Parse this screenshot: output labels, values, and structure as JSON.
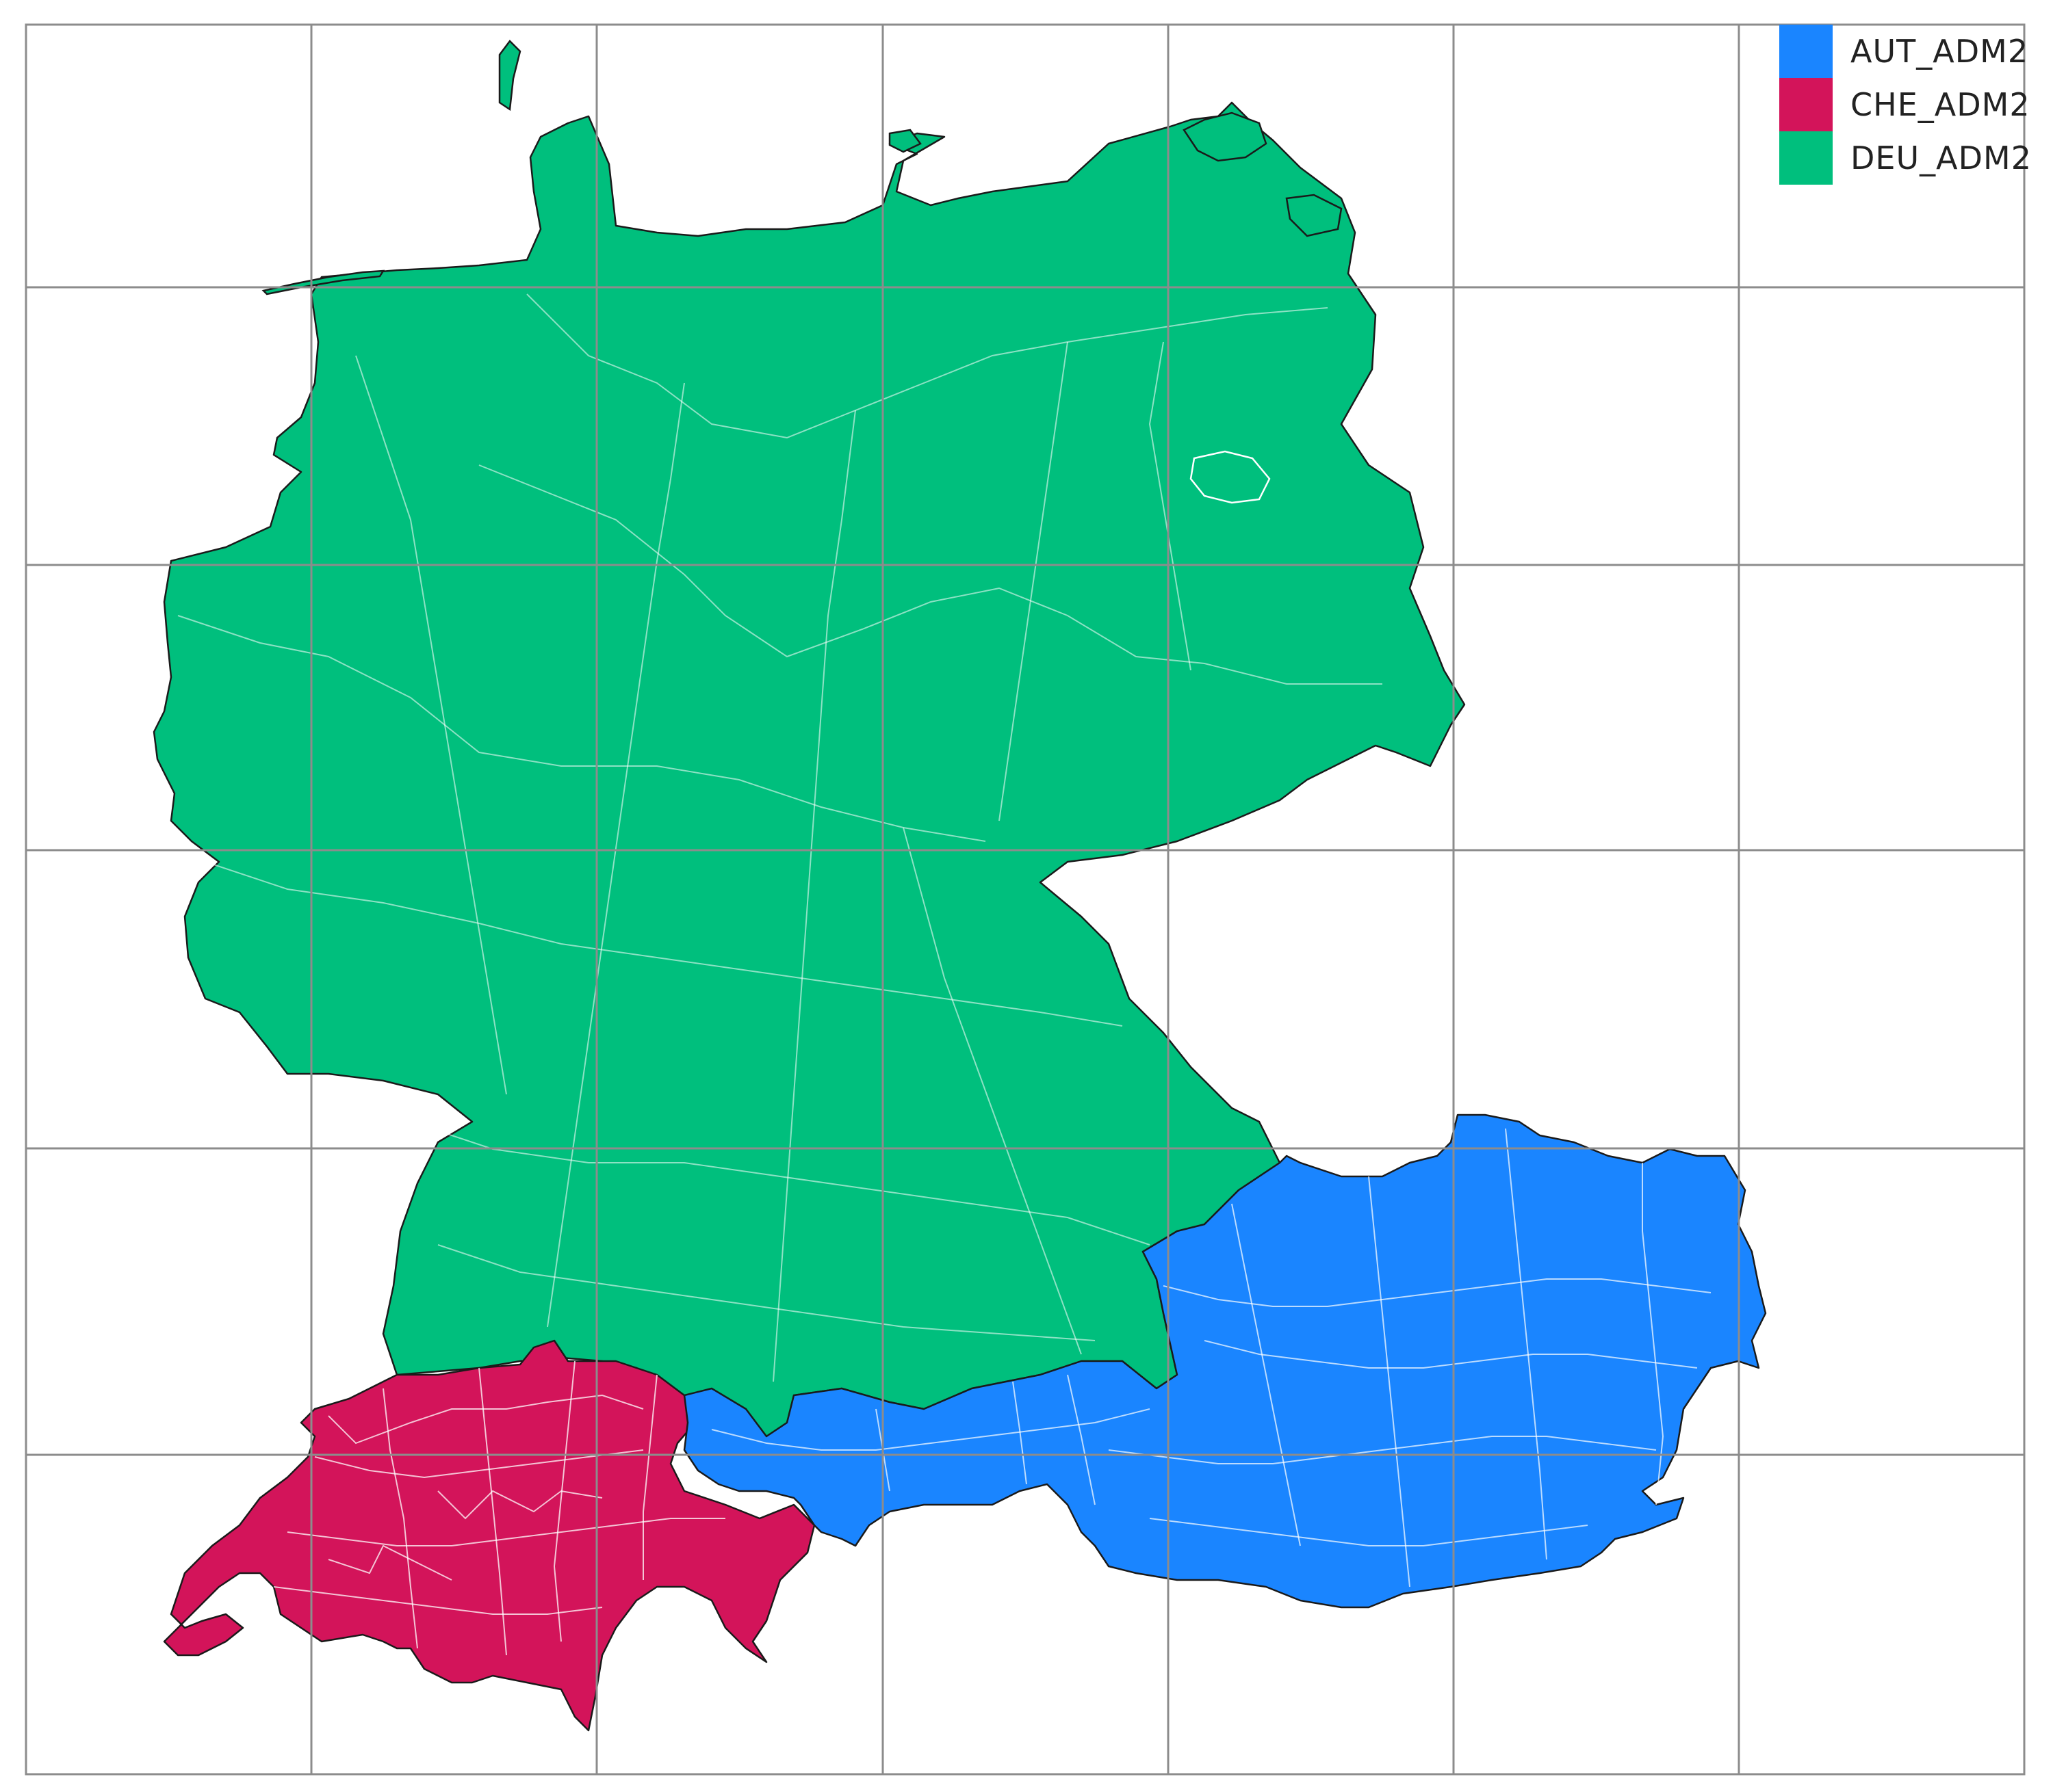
{
  "legend": {
    "items": [
      {
        "label": "AUT_ADM2",
        "color": "#1a85ff"
      },
      {
        "label": "CHE_ADM2",
        "color": "#d3145a"
      },
      {
        "label": "DEU_ADM2",
        "color": "#00bf7d"
      }
    ]
  },
  "colors": {
    "background": "#ffffff",
    "grid": "#8c8c8c",
    "region_outline": "#1a1a1a",
    "internal_border": "#ffffff"
  },
  "map": {
    "layers": [
      "DEU_ADM2",
      "CHE_ADM2",
      "AUT_ADM2"
    ],
    "grid": true
  }
}
